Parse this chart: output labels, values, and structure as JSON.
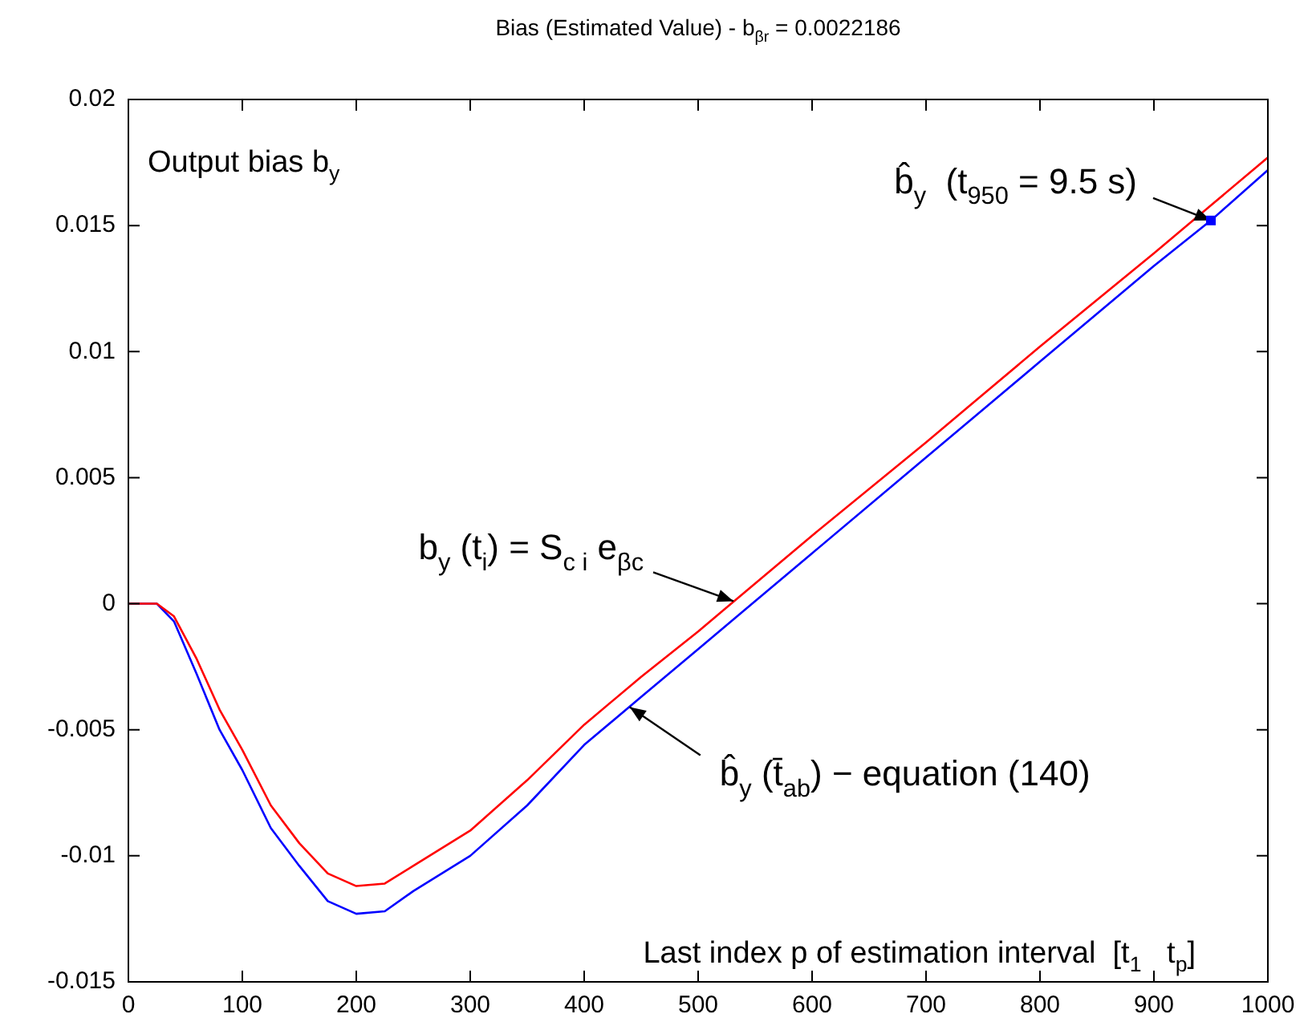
{
  "chart_data": {
    "type": "line",
    "title": "Bias (Estimated Value) - b$_{βr}$ = 0.0022186",
    "xlabel": "Last index p of estimation interval  [t$_{1}$   t$_{p}$]",
    "x": [
      0,
      25,
      40,
      60,
      80,
      100,
      125,
      150,
      175,
      200,
      225,
      250,
      300,
      350,
      400,
      450,
      500,
      600,
      700,
      800,
      900,
      950,
      1000
    ],
    "series": [
      {
        "color": "#ff0000",
        "values": [
          0,
          0,
          -0.0005,
          -0.0022,
          -0.0042,
          -0.0058,
          -0.008,
          -0.0095,
          -0.0107,
          -0.0112,
          -0.0111,
          -0.0104,
          -0.009,
          -0.007,
          -0.0048,
          -0.0029,
          -0.0011,
          0.0027,
          0.0064,
          0.0102,
          0.0139,
          0.0158,
          0.0177
        ]
      },
      {
        "color": "#0000ff",
        "values": [
          0,
          0,
          -0.0007,
          -0.0028,
          -0.005,
          -0.0066,
          -0.0089,
          -0.0104,
          -0.0118,
          -0.0123,
          -0.0122,
          -0.0114,
          -0.01,
          -0.008,
          -0.0056,
          -0.0037,
          -0.0018,
          0.002,
          0.0058,
          0.0096,
          0.0134,
          0.0152,
          0.0172
        ]
      }
    ],
    "xlim": [
      0,
      1000
    ],
    "xticks": [
      0,
      100,
      200,
      300,
      400,
      500,
      600,
      700,
      800,
      900,
      1000
    ],
    "ylim": [
      -0.015,
      0.02
    ],
    "yticks": [
      -0.015,
      -0.01,
      -0.005,
      0,
      0.005,
      0.01,
      0.015,
      0.02
    ],
    "grid": false,
    "legend": false,
    "marker": "none",
    "line_style": "solid",
    "annotations": [
      "Output bias b$_{y}$",
      {
        "text": "b̂$_{y}$  (t$_{950}$ = 9.5 s)",
        "x": 950,
        "y": 0.0152
      },
      {
        "text": "b$_{y}$ (t$_{i}$) = S$_{c i}$ e$_{βc}$",
        "x": 531,
        "y": 0.0001
      },
      {
        "text": "b̂$_{y}$ (t̄$_{ab}$) − equation (140)",
        "x": 440,
        "y": -0.0041
      }
    ]
  }
}
